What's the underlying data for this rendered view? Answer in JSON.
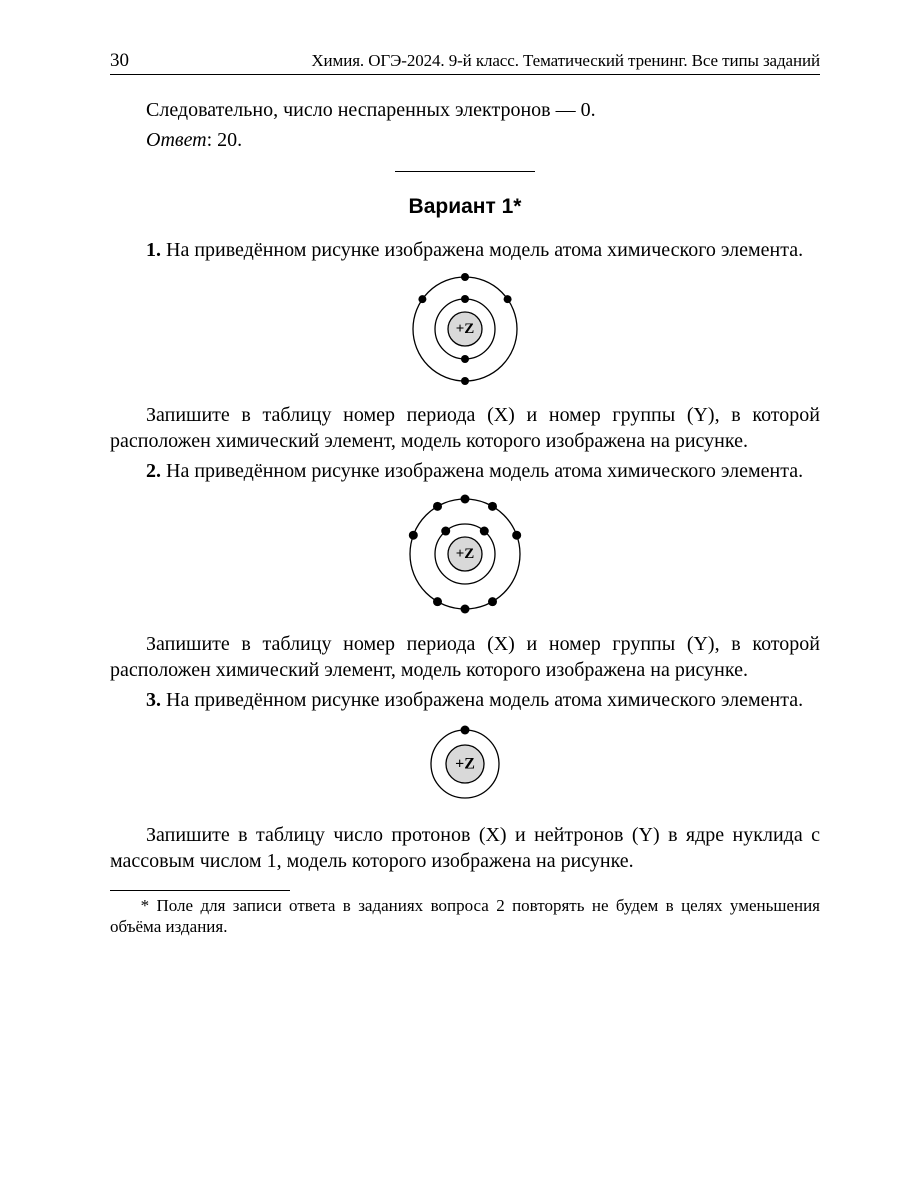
{
  "page": {
    "number": "30",
    "running_title": "Химия. ОГЭ-2024. 9-й класс. Тематический тренинг. Все типы заданий"
  },
  "intro": {
    "line1": "Следовательно, число неспаренных электронов — 0.",
    "answer_label": "Ответ",
    "answer_value": ": 20."
  },
  "variant_heading": "Вариант 1*",
  "tasks": {
    "t1": {
      "num": "1.",
      "text_a": " На приведённом рисунке изображена модель атома химического элемента.",
      "text_b": "Запишите в таблицу номер периода (X) и номер группы (Y), в которой расположен химический элемент, модель которого изображена на рисунке."
    },
    "t2": {
      "num": "2.",
      "text_a": " На приведённом рисунке изображена модель атома химического элемента.",
      "text_b": "Запишите в таблицу номер периода (X) и номер группы (Y), в которой расположен химический элемент, модель которого изображена на рисунке."
    },
    "t3": {
      "num": "3.",
      "text_a": " На приведённом рисунке изображена модель атома химического элемента.",
      "text_b": "Запишите в таблицу число протонов (X) и нейтронов (Y) в ядре нуклида с массовым числом 1, модель которого изображена на рисунке."
    }
  },
  "footnote": "* Поле для записи ответа в заданиях вопроса 2 повторять не будем в целях уменьшения объёма издания.",
  "atoms": {
    "nucleus_label": "+Z",
    "nucleus_fill": "#d9d9d9",
    "electron_fill": "#000000",
    "stroke": "#000000",
    "a1": {
      "shells": [
        {
          "r": 30,
          "electron_r": 4,
          "angles_deg": [
            90,
            270
          ]
        },
        {
          "r": 52,
          "electron_r": 4,
          "angles_deg": [
            35,
            90,
            145,
            270
          ]
        }
      ],
      "nucleus_r": 17,
      "font_size": 15,
      "svg_size": 120
    },
    "a2": {
      "shells": [
        {
          "r": 30,
          "electron_r": 4.5,
          "angles_deg": [
            50,
            130
          ]
        },
        {
          "r": 55,
          "electron_r": 4.5,
          "angles_deg": [
            20,
            60,
            90,
            120,
            160,
            240,
            270,
            300
          ]
        }
      ],
      "nucleus_r": 17,
      "font_size": 15,
      "svg_size": 128
    },
    "a3": {
      "shells": [
        {
          "r": 34,
          "electron_r": 4.5,
          "angles_deg": [
            90
          ]
        }
      ],
      "nucleus_r": 19,
      "font_size": 16,
      "svg_size": 90
    }
  }
}
